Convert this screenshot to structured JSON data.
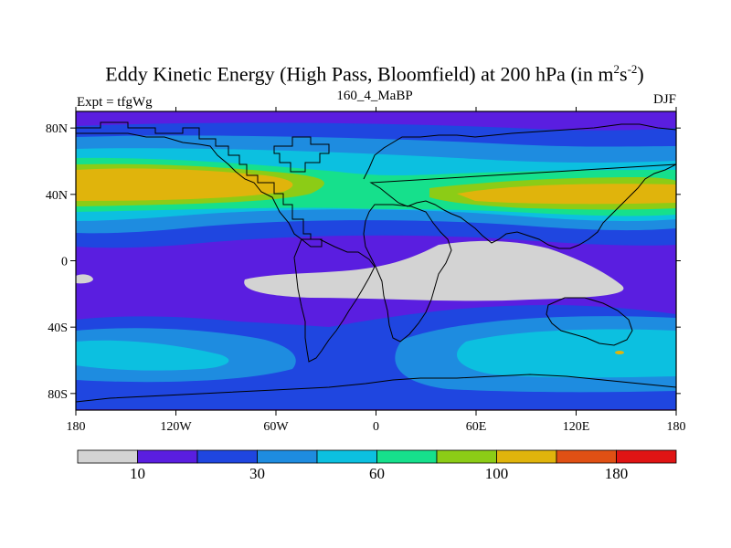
{
  "title": {
    "main": "Eddy Kinetic Energy (High Pass, Bloomfield) at 200 hPa (in m",
    "exp1": "2",
    "s_letter": "s",
    "exp2": "-2",
    "close": ")"
  },
  "subtitle_center": "160_4_MaBP",
  "subtitle_left": "Expt = tfgWg",
  "subtitle_right": "DJF",
  "map": {
    "projection": "cylindrical equidistant",
    "lon_range": [
      -180,
      180
    ],
    "lat_range": [
      -90,
      90
    ],
    "x_ticks": [
      {
        "value": -180,
        "label": "180"
      },
      {
        "value": -120,
        "label": "120W"
      },
      {
        "value": -60,
        "label": "60W"
      },
      {
        "value": 0,
        "label": "0"
      },
      {
        "value": 60,
        "label": "60E"
      },
      {
        "value": 120,
        "label": "120E"
      },
      {
        "value": 180,
        "label": "180"
      }
    ],
    "y_ticks": [
      {
        "value": 80,
        "label": "80N"
      },
      {
        "value": 40,
        "label": "40N"
      },
      {
        "value": 0,
        "label": "0"
      },
      {
        "value": -40,
        "label": "40S"
      },
      {
        "value": -80,
        "label": "80S"
      }
    ]
  },
  "colorbar": {
    "colors": [
      "#d3d3d3",
      "#5a1ee0",
      "#1f46e0",
      "#1e8ce0",
      "#0cc0e0",
      "#16e08c",
      "#8ccc16",
      "#e0b40c",
      "#e05014",
      "#e01414"
    ],
    "labels": [
      {
        "boundary": 1,
        "label": "10"
      },
      {
        "boundary": 3,
        "label": "30"
      },
      {
        "boundary": 5,
        "label": "60"
      },
      {
        "boundary": 7,
        "label": "100"
      },
      {
        "boundary": 9,
        "label": "180"
      }
    ]
  }
}
